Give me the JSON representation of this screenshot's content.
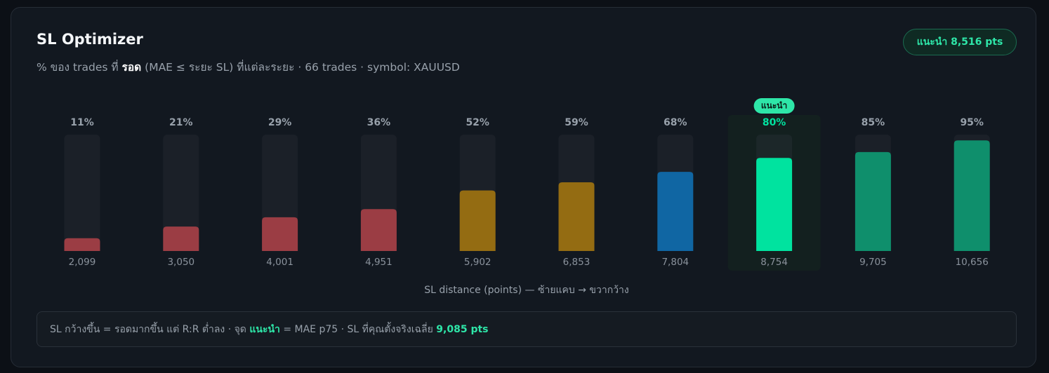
{
  "header": {
    "title": "SL Optimizer",
    "subtitle_parts": [
      "% ของ trades ที่ ",
      "รอด",
      " (MAE ≤ ระยะ SL) ที่แต่ละระยะ · 66 trades · symbol: XAUUSD"
    ],
    "badge": "แนะนำ 8,516 pts"
  },
  "chart_data": {
    "type": "bar",
    "x_label": "SL distance (points) — ซ้ายแคบ → ขวากว้าง",
    "categories": [
      "2,099",
      "3,050",
      "4,001",
      "4,951",
      "5,902",
      "6,853",
      "7,804",
      "8,754",
      "9,705",
      "10,656"
    ],
    "values": [
      11,
      21,
      29,
      36,
      52,
      59,
      68,
      80,
      85,
      95
    ],
    "value_labels": [
      "11%",
      "21%",
      "29%",
      "36%",
      "52%",
      "59%",
      "68%",
      "80%",
      "85%",
      "95%"
    ],
    "colors": [
      "#9b3d44",
      "#9b3d44",
      "#9b3d44",
      "#9b3d44",
      "#946c12",
      "#946c12",
      "#1066a3",
      "#00e39f",
      "#0f8f6c",
      "#0f8f6c"
    ],
    "ylim": [
      0,
      100
    ],
    "annotations": [
      {
        "text": "แนะนำ",
        "x": "8,754"
      }
    ]
  },
  "footer": {
    "parts": [
      "SL กว้างขึ้น = รอดมากขึ้น แต่ R:R ต่ำลง · จุด ",
      "แนะนำ",
      " = MAE p75 · SL ที่คุณตั้งจริงเฉลี่ย ",
      "9,085 pts"
    ]
  }
}
